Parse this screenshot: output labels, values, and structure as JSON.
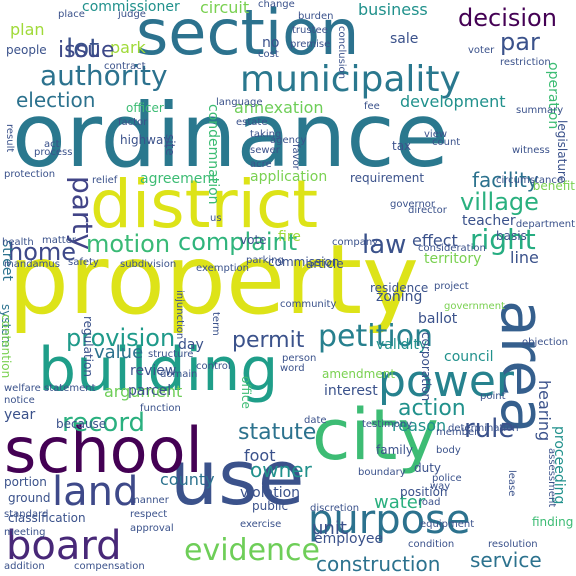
{
  "words": [
    {
      "text": "ordinance",
      "color": "#2a788e"
    },
    {
      "text": "property",
      "color": "#dde318"
    },
    {
      "text": "section",
      "color": "#2c728e"
    },
    {
      "text": "district",
      "color": "#dde318"
    },
    {
      "text": "building",
      "color": "#1f9e89"
    },
    {
      "text": "city",
      "color": "#3dbc74"
    },
    {
      "text": "use",
      "color": "#3b528b"
    },
    {
      "text": "school",
      "color": "#440154"
    },
    {
      "text": "municipality",
      "color": "#2a788e"
    },
    {
      "text": "authority",
      "color": "#2c728e"
    },
    {
      "text": "area",
      "color": "#355f8d"
    },
    {
      "text": "power",
      "color": "#26828e"
    },
    {
      "text": "purpose",
      "color": "#2c728e"
    },
    {
      "text": "board",
      "color": "#482878"
    },
    {
      "text": "land",
      "color": "#3e4989"
    },
    {
      "text": "petition",
      "color": "#27808e"
    },
    {
      "text": "decision",
      "color": "#440154"
    },
    {
      "text": "village",
      "color": "#2ab07f"
    },
    {
      "text": "complaint",
      "color": "#2fb47c"
    },
    {
      "text": "evidence",
      "color": "#6ece58"
    },
    {
      "text": "motion",
      "color": "#3aba76"
    },
    {
      "text": "provision",
      "color": "#1f9a8a"
    },
    {
      "text": "right",
      "color": "#26ad81"
    },
    {
      "text": "law",
      "color": "#3b528b"
    },
    {
      "text": "party",
      "color": "#414487"
    },
    {
      "text": "home",
      "color": "#3e4989"
    },
    {
      "text": "lot",
      "color": "#3b528b"
    },
    {
      "text": "park",
      "color": "#a0da39"
    },
    {
      "text": "issue",
      "color": "#3e4989"
    },
    {
      "text": "par",
      "color": "#3b528b"
    },
    {
      "text": "election",
      "color": "#2c728e"
    },
    {
      "text": "plan",
      "color": "#a0da39"
    },
    {
      "text": "circuit",
      "color": "#7ad151"
    },
    {
      "text": "business",
      "color": "#21918c"
    },
    {
      "text": "commissioner",
      "color": "#21918c"
    },
    {
      "text": "permit",
      "color": "#3b528b"
    },
    {
      "text": "action",
      "color": "#21918c"
    },
    {
      "text": "rule",
      "color": "#3b528b"
    },
    {
      "text": "statute",
      "color": "#2c728e"
    },
    {
      "text": "record",
      "color": "#2ab07f"
    },
    {
      "text": "owner",
      "color": "#21918c"
    },
    {
      "text": "value",
      "color": "#2c728e"
    },
    {
      "text": "argument",
      "color": "#6ece58"
    },
    {
      "text": "county",
      "color": "#2c728e"
    },
    {
      "text": "construction",
      "color": "#2c728e"
    },
    {
      "text": "service",
      "color": "#2c728e"
    },
    {
      "text": "unit",
      "color": "#3b528b"
    },
    {
      "text": "water",
      "color": "#2ab07f"
    },
    {
      "text": "hearing",
      "color": "#3b528b"
    },
    {
      "text": "facility",
      "color": "#2c728e"
    },
    {
      "text": "annexation",
      "color": "#6ece58"
    },
    {
      "text": "development",
      "color": "#21918c"
    },
    {
      "text": "zoning",
      "color": "#3b528b"
    },
    {
      "text": "interest",
      "color": "#3b528b"
    },
    {
      "text": "effect",
      "color": "#3b528b"
    },
    {
      "text": "line",
      "color": "#3b528b"
    },
    {
      "text": "proceeding",
      "color": "#21918c"
    },
    {
      "text": "reason",
      "color": "#21918c"
    },
    {
      "text": "foot",
      "color": "#3b528b"
    },
    {
      "text": "finding",
      "color": "#3dbc74"
    },
    {
      "text": "validity",
      "color": "#21918c"
    },
    {
      "text": "ballot",
      "color": "#3b528b"
    },
    {
      "text": "territory",
      "color": "#7ad151"
    },
    {
      "text": "review",
      "color": "#3b528b"
    },
    {
      "text": "parcel",
      "color": "#3b528b"
    },
    {
      "text": "day",
      "color": "#3b528b"
    },
    {
      "text": "council",
      "color": "#21918c"
    },
    {
      "text": "violation",
      "color": "#3b528b"
    },
    {
      "text": "employee",
      "color": "#3b528b"
    },
    {
      "text": "agreement",
      "color": "#3dbc74"
    },
    {
      "text": "application",
      "color": "#7ad151"
    },
    {
      "text": "requirement",
      "color": "#3b528b"
    },
    {
      "text": "teacher",
      "color": "#3b528b"
    },
    {
      "text": "vote",
      "color": "#3b528b"
    },
    {
      "text": "fire",
      "color": "#a0da39"
    },
    {
      "text": "commission",
      "color": "#3b528b"
    },
    {
      "text": "street",
      "color": "#2c728e"
    },
    {
      "text": "matter",
      "color": "#3b528b"
    },
    {
      "text": "condemnation",
      "color": "#3dbc74"
    },
    {
      "text": "legislature",
      "color": "#3b528b"
    },
    {
      "text": "restriction",
      "color": "#3b528b"
    },
    {
      "text": "operation",
      "color": "#3dbc74"
    },
    {
      "text": "contract",
      "color": "#3b528b"
    },
    {
      "text": "people",
      "color": "#3b528b"
    },
    {
      "text": "no",
      "color": "#3b528b"
    },
    {
      "text": "cost",
      "color": "#3b528b"
    },
    {
      "text": "premise",
      "color": "#3b528b"
    },
    {
      "text": "sale",
      "color": "#3b528b"
    },
    {
      "text": "officer",
      "color": "#3dbc74"
    },
    {
      "text": "estate",
      "color": "#3b528b"
    },
    {
      "text": "highway",
      "color": "#3b528b"
    },
    {
      "text": "factor",
      "color": "#3b528b"
    },
    {
      "text": "result",
      "color": "#3b528b"
    },
    {
      "text": "site",
      "color": "#3b528b"
    },
    {
      "text": "relief",
      "color": "#3b528b"
    },
    {
      "text": "protection",
      "color": "#3b528b"
    },
    {
      "text": "tax",
      "color": "#3b528b"
    },
    {
      "text": "view",
      "color": "#3b528b"
    },
    {
      "text": "count",
      "color": "#3b528b"
    },
    {
      "text": "witness",
      "color": "#3b528b"
    },
    {
      "text": "summary",
      "color": "#3b528b"
    },
    {
      "text": "benefit",
      "color": "#7ad151"
    },
    {
      "text": "basis",
      "color": "#3b528b"
    },
    {
      "text": "regulation",
      "color": "#3b528b"
    },
    {
      "text": "system",
      "color": "#2c728e"
    },
    {
      "text": "health",
      "color": "#3b528b"
    },
    {
      "text": "article",
      "color": "#3b528b"
    },
    {
      "text": "parking",
      "color": "#3b528b"
    },
    {
      "text": "residence",
      "color": "#3b528b"
    },
    {
      "text": "project",
      "color": "#3b528b"
    },
    {
      "text": "government",
      "color": "#7ad151"
    },
    {
      "text": "injunction",
      "color": "#3b528b"
    },
    {
      "text": "term",
      "color": "#3b528b"
    },
    {
      "text": "exemption",
      "color": "#3b528b"
    },
    {
      "text": "community",
      "color": "#3b528b"
    },
    {
      "text": "contention",
      "color": "#7ad151"
    },
    {
      "text": "office",
      "color": "#3dbc74"
    },
    {
      "text": "amendment",
      "color": "#7ad151"
    },
    {
      "text": "corporation",
      "color": "#3b528b"
    },
    {
      "text": "year",
      "color": "#3b528b"
    },
    {
      "text": "because",
      "color": "#3b528b"
    },
    {
      "text": "portion",
      "color": "#3b528b"
    },
    {
      "text": "ground",
      "color": "#3b528b"
    },
    {
      "text": "classification",
      "color": "#3b528b"
    },
    {
      "text": "welfare",
      "color": "#3b528b"
    },
    {
      "text": "family",
      "color": "#3b528b"
    },
    {
      "text": "boundary",
      "color": "#3b528b"
    },
    {
      "text": "duty",
      "color": "#3b528b"
    },
    {
      "text": "position",
      "color": "#3b528b"
    },
    {
      "text": "public",
      "color": "#3b528b"
    },
    {
      "text": "respect",
      "color": "#3b528b"
    },
    {
      "text": "approval",
      "color": "#3b528b"
    },
    {
      "text": "meeting",
      "color": "#3b528b"
    },
    {
      "text": "standard",
      "color": "#3b528b"
    },
    {
      "text": "notice",
      "color": "#3b528b"
    },
    {
      "text": "statement",
      "color": "#3b528b"
    },
    {
      "text": "mandamus",
      "color": "#3b528b"
    },
    {
      "text": "control",
      "color": "#3b528b"
    },
    {
      "text": "road",
      "color": "#3b528b"
    },
    {
      "text": "manner",
      "color": "#3b528b"
    },
    {
      "text": "resolution",
      "color": "#3b528b"
    },
    {
      "text": "condition",
      "color": "#3b528b"
    },
    {
      "text": "addition",
      "color": "#3b528b"
    },
    {
      "text": "compensation",
      "color": "#3b528b"
    },
    {
      "text": "testimony",
      "color": "#3b528b"
    },
    {
      "text": "member",
      "color": "#3b528b"
    },
    {
      "text": "determination",
      "color": "#3b528b"
    },
    {
      "text": "point",
      "color": "#3b528b"
    },
    {
      "text": "objection",
      "color": "#3b528b"
    },
    {
      "text": "conclusion",
      "color": "#3b528b"
    },
    {
      "text": "language",
      "color": "#3b528b"
    },
    {
      "text": "burden",
      "color": "#3b528b"
    },
    {
      "text": "change",
      "color": "#3b528b"
    },
    {
      "text": "judge",
      "color": "#3b528b"
    },
    {
      "text": "voter",
      "color": "#3b528b"
    },
    {
      "text": "fee",
      "color": "#3b528b"
    },
    {
      "text": "taking",
      "color": "#3b528b"
    },
    {
      "text": "sewer",
      "color": "#3b528b"
    },
    {
      "text": "acre",
      "color": "#3b528b"
    },
    {
      "text": "agency",
      "color": "#3b528b"
    },
    {
      "text": "favor",
      "color": "#3b528b"
    },
    {
      "text": "process",
      "color": "#3b528b"
    },
    {
      "text": "department",
      "color": "#3b528b"
    },
    {
      "text": "director",
      "color": "#3b528b"
    },
    {
      "text": "company",
      "color": "#3b528b"
    },
    {
      "text": "safety",
      "color": "#3b528b"
    },
    {
      "text": "subdivision",
      "color": "#3b528b"
    },
    {
      "text": "function",
      "color": "#3b528b"
    },
    {
      "text": "domain",
      "color": "#3b528b"
    },
    {
      "text": "person",
      "color": "#3b528b"
    },
    {
      "text": "date",
      "color": "#3b528b"
    },
    {
      "text": "exercise",
      "color": "#3b528b"
    },
    {
      "text": "discretion",
      "color": "#3b528b"
    },
    {
      "text": "lease",
      "color": "#3b528b"
    },
    {
      "text": "equipment",
      "color": "#3b528b"
    },
    {
      "text": "assessment",
      "color": "#3b528b"
    },
    {
      "text": "circumstance",
      "color": "#3b528b"
    },
    {
      "text": "body",
      "color": "#3b528b"
    },
    {
      "text": "police",
      "color": "#3b528b"
    },
    {
      "text": "word",
      "color": "#3b528b"
    },
    {
      "text": "way",
      "color": "#3b528b"
    },
    {
      "text": "us",
      "color": "#3b528b"
    },
    {
      "text": "act",
      "color": "#3b528b"
    },
    {
      "text": "place",
      "color": "#3b528b"
    },
    {
      "text": "trustee",
      "color": "#3b528b"
    },
    {
      "text": "governor",
      "color": "#3b528b"
    },
    {
      "text": "structure",
      "color": "#3b528b"
    },
    {
      "text": "consideration",
      "color": "#3b528b"
    },
    {
      "text": "trial",
      "color": "#3b528b"
    }
  ]
}
